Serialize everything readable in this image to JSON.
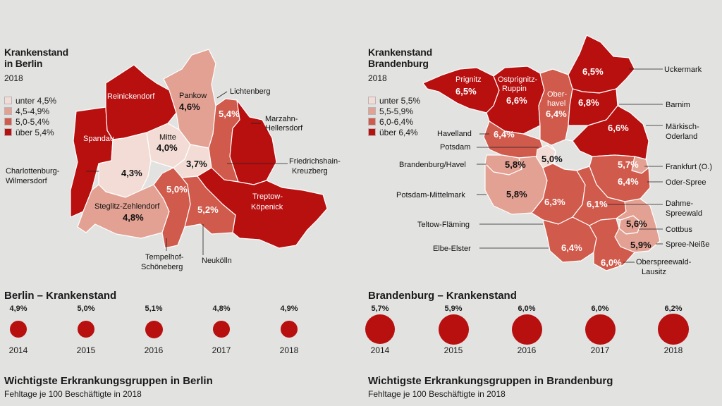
{
  "colors": {
    "c1": "#f2dcd5",
    "c2": "#e3a193",
    "c3": "#d05a4b",
    "c4": "#b80f0f"
  },
  "berlin": {
    "title_l1": "Krankenstand",
    "title_l2": "in Berlin",
    "year": "2018",
    "legend": [
      "unter 4,5%",
      "4,5-4,9%",
      "5,0-5,4%",
      "über 5,4%"
    ],
    "labels": {
      "reinickendorf": "Reinickendorf",
      "pankow": "Pankow",
      "pankow_val": "4,6%",
      "lichtenberg": "Lichtenberg",
      "lichtenberg_val": "5,4%",
      "marzahn_1": "Marzahn-",
      "marzahn_2": "Hellersdorf",
      "spandau": "Spandau",
      "mitte": "Mitte",
      "mitte_val": "4,0%",
      "fk_val": "3,7%",
      "fk_1": "Friedrichshain-",
      "fk_2": "Kreuzberg",
      "cw_1": "Charlottenburg-",
      "cw_2": "Wilmersdorf",
      "cw_val": "4,3%",
      "ts_val": "5,0%",
      "tk_1": "Treptow-",
      "tk_2": "Köpenick",
      "sz": "Steglitz-Zehlendorf",
      "sz_val": "4,8%",
      "neukoelln_val": "5,2%",
      "neukoelln": "Neukölln",
      "ts_1": "Tempelhof-",
      "ts_2": "Schöneberg"
    },
    "section_title": "Berlin – Krankenstand",
    "dots": [
      {
        "year": "2014",
        "pct": "4,9%",
        "value": 4.9
      },
      {
        "year": "2015",
        "pct": "5,0%",
        "value": 5.0
      },
      {
        "year": "2016",
        "pct": "5,1%",
        "value": 5.1
      },
      {
        "year": "2017",
        "pct": "4,8%",
        "value": 4.8
      },
      {
        "year": "2018",
        "pct": "4,9%",
        "value": 4.9
      }
    ],
    "bottom_title": "Wichtigste Erkrankungsgruppen in Berlin",
    "bottom_sub": "Fehltage je 100 Beschäftigte in 2018"
  },
  "brandenburg": {
    "title_l1": "Krankenstand",
    "title_l2": "Brandenburg",
    "year": "2018",
    "legend": [
      "unter 5,5%",
      "5,5-5,9%",
      "6,0-6,4%",
      "über 6,4%"
    ],
    "labels": {
      "prignitz": "Prignitz",
      "prignitz_val": "6,5%",
      "opr_1": "Ostprignitz-",
      "opr_2": "Ruppin",
      "opr_val": "6,6%",
      "oh_1": "Ober-",
      "oh_2": "havel",
      "oh_val": "6,4%",
      "um_val": "6,5%",
      "uckermark": "Uckermark",
      "barnim_val": "6,8%",
      "barnim": "Barnim",
      "mol_val": "6,6%",
      "mol_1": "Märkisch-",
      "mol_2": "Oderland",
      "havelland": "Havelland",
      "havelland_val": "6,4%",
      "potsdam": "Potsdam",
      "potsdam_val": "5,0%",
      "brb": "Brandenburg/Havel",
      "brb_val": "5,8%",
      "ffo_val": "5,7%",
      "ffo": "Frankfurt (O.)",
      "los_val": "6,4%",
      "los": "Oder-Spree",
      "pm": "Potsdam-Mittelmark",
      "pm_val": "5,8%",
      "tf_val": "6,3%",
      "tf": "Teltow-Fläming",
      "lds_val": "6,1%",
      "lds_1": "Dahme-",
      "lds_2": "Spreewald",
      "cb_val": "5,6%",
      "cb": "Cottbus",
      "ee": "Elbe-Elster",
      "ee_val": "6,4%",
      "spn_val": "5,9%",
      "spn": "Spree-Neiße",
      "osl_val": "6,0%",
      "osl_1": "Oberspreewald-",
      "osl_2": "Lausitz"
    },
    "section_title": "Brandenburg – Krankenstand",
    "dots": [
      {
        "year": "2014",
        "pct": "5,7%",
        "value": 5.7
      },
      {
        "year": "2015",
        "pct": "5,9%",
        "value": 5.9
      },
      {
        "year": "2016",
        "pct": "6,0%",
        "value": 6.0
      },
      {
        "year": "2017",
        "pct": "6,0%",
        "value": 6.0
      },
      {
        "year": "2018",
        "pct": "6,2%",
        "value": 6.2
      }
    ],
    "bottom_title": "Wichtigste Erkrankungsgruppen in Brandenburg",
    "bottom_sub": "Fehltage je 100 Beschäftigte in 2018"
  }
}
